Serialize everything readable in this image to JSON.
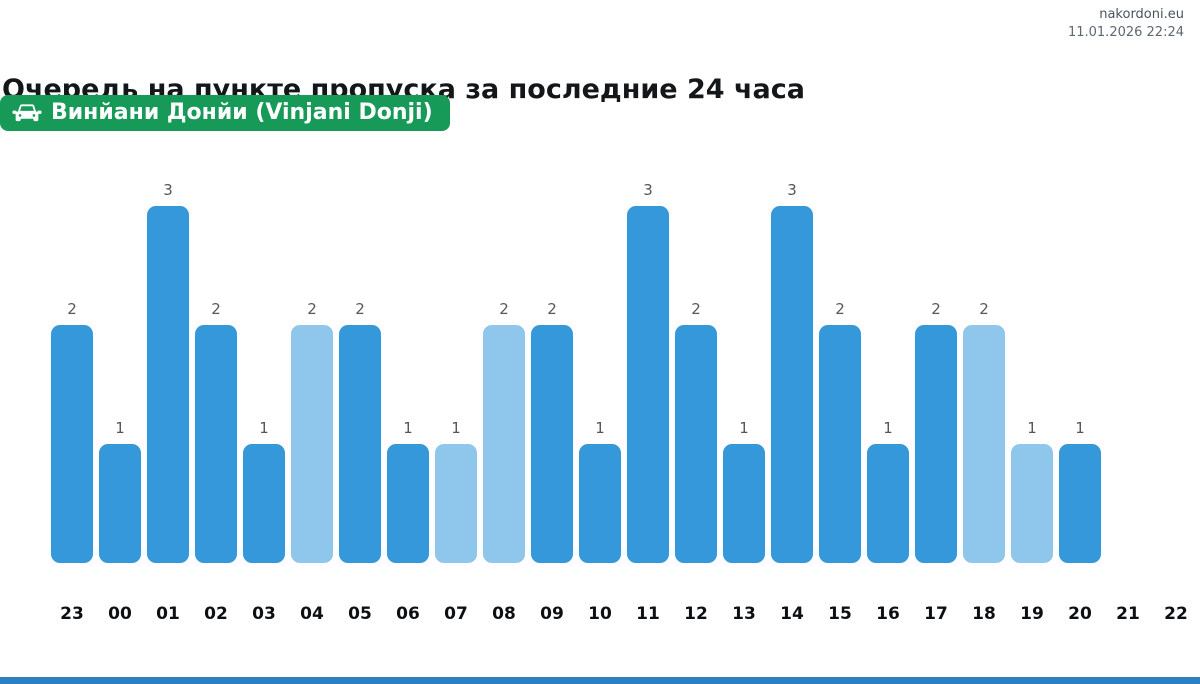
{
  "header": {
    "site_name": "nakordoni.eu",
    "datetime": "11.01.2026 22:24"
  },
  "title": "Очередь на пункте пропуска за последние 24 часа",
  "checkpoint": {
    "label": "Винйани Донйи (Vinjani Donji)",
    "icon": "car-icon",
    "badge_color": "#179a58"
  },
  "colors": {
    "bar_dark": "#3498db",
    "bar_light": "#8ec6ec",
    "footer_strip": "#2d7fc1"
  },
  "chart_data": {
    "type": "bar",
    "title": "Очередь на пункте пропуска за последние 24 часа",
    "xlabel": "",
    "ylabel": "",
    "ylim": [
      0,
      3
    ],
    "grid": false,
    "legend": false,
    "categories": [
      "23",
      "00",
      "01",
      "02",
      "03",
      "04",
      "05",
      "06",
      "07",
      "08",
      "09",
      "10",
      "11",
      "12",
      "13",
      "14",
      "15",
      "16",
      "17",
      "18",
      "19",
      "20",
      "21",
      "22"
    ],
    "values": [
      2,
      1,
      3,
      2,
      1,
      2,
      2,
      1,
      1,
      2,
      2,
      1,
      3,
      2,
      1,
      3,
      2,
      1,
      2,
      2,
      1,
      1,
      null,
      null
    ],
    "shades": [
      "dark",
      "dark",
      "dark",
      "dark",
      "dark",
      "light",
      "dark",
      "dark",
      "light",
      "light",
      "dark",
      "dark",
      "dark",
      "dark",
      "dark",
      "dark",
      "dark",
      "dark",
      "dark",
      "light",
      "light",
      "dark",
      null,
      null
    ],
    "bar_labels_shown": true
  }
}
